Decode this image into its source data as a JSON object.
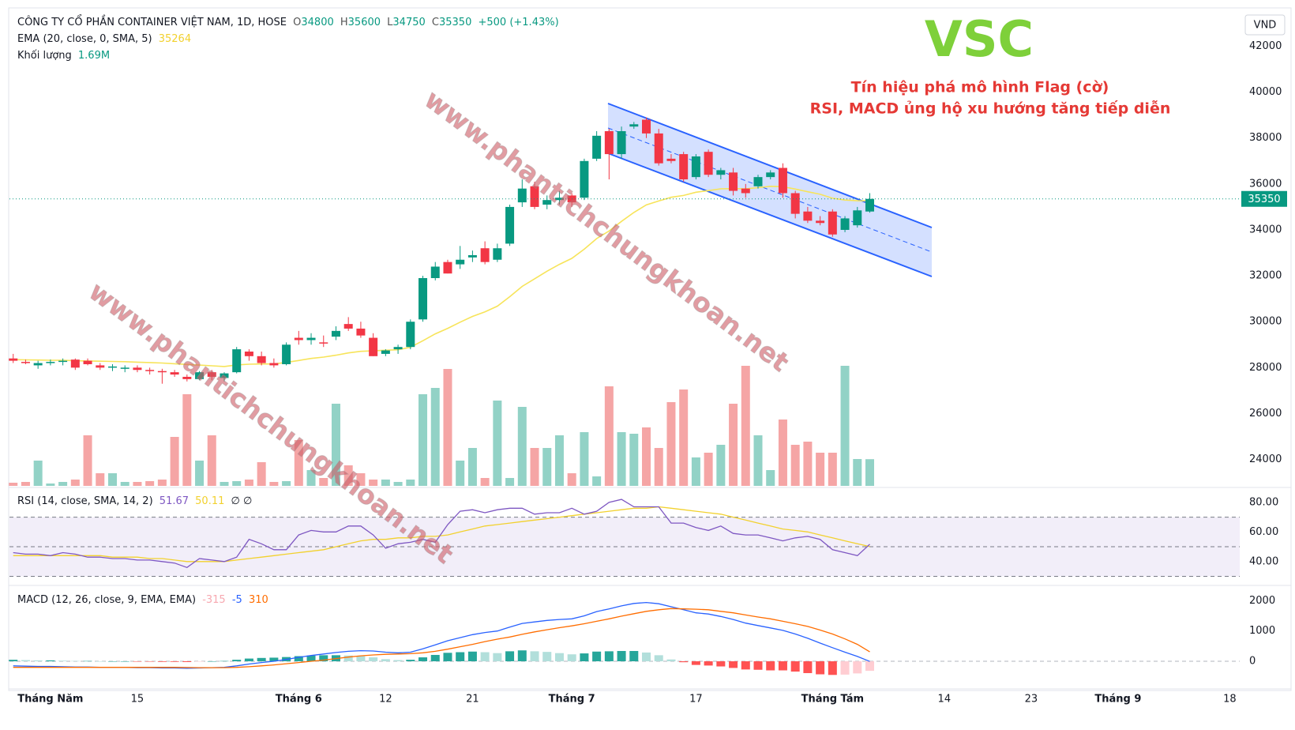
{
  "chart_data": {
    "type": "candlestick",
    "title": "CÔNG TY CỔ PHẦN CONTAINER VIỆT NAM, 1D, HOSE",
    "ohlc_letters": [
      "O",
      "H",
      "L",
      "C"
    ],
    "change_label": "+500 (+1.43%)",
    "currency": "VND",
    "up_color": "#089981",
    "down_color": "#f23645",
    "volume_up_color": "#92d2c6",
    "volume_down_color": "#f5a5a5",
    "open": [
      28400,
      28250,
      28100,
      28200,
      28250,
      28350,
      28300,
      28100,
      28000,
      27950,
      28000,
      27900,
      27850,
      27800,
      27600,
      27500,
      27800,
      27550,
      27800,
      28700,
      28500,
      28200,
      28150,
      29300,
      29200,
      29100,
      29350,
      29900,
      29700,
      29300,
      28600,
      28800,
      28900,
      30100,
      31900,
      32600,
      32500,
      32800,
      33200,
      32700,
      33400,
      35200,
      35900,
      35100,
      35300,
      35500,
      35400,
      37100,
      38300,
      37300,
      38500,
      38800,
      38200,
      37100,
      37300,
      36300,
      37400,
      36400,
      36500,
      35800,
      35900,
      36300,
      36700,
      35600,
      34800,
      34400,
      34800,
      34000,
      34200,
      34800
    ],
    "high": [
      28600,
      28350,
      28300,
      28350,
      28400,
      28400,
      28400,
      28200,
      28150,
      28100,
      28100,
      28000,
      27950,
      27900,
      27700,
      27850,
      27900,
      27800,
      28900,
      28800,
      28700,
      28400,
      29100,
      29600,
      29500,
      29400,
      29800,
      30200,
      30000,
      29500,
      28800,
      29000,
      30100,
      32000,
      32600,
      32700,
      33300,
      33100,
      33500,
      33400,
      35100,
      36200,
      36100,
      35500,
      35700,
      35600,
      37100,
      38300,
      38400,
      38500,
      38700,
      38900,
      38400,
      37300,
      37400,
      37300,
      37500,
      36700,
      36700,
      36000,
      36400,
      36600,
      36900,
      35700,
      35000,
      34600,
      34900,
      34600,
      35000,
      35600
    ],
    "low": [
      28200,
      28150,
      27950,
      28100,
      28100,
      27900,
      28100,
      27900,
      27850,
      27800,
      27800,
      27700,
      27300,
      27600,
      27400,
      27450,
      27450,
      27400,
      27750,
      28300,
      28100,
      28000,
      28100,
      29000,
      29000,
      28900,
      29200,
      29600,
      29300,
      28500,
      28500,
      28600,
      28800,
      30000,
      31800,
      32100,
      32300,
      32600,
      32500,
      32600,
      33300,
      35000,
      34900,
      34900,
      35100,
      35000,
      35300,
      37000,
      36200,
      37100,
      38400,
      38000,
      36800,
      36900,
      36100,
      36200,
      36300,
      36200,
      35500,
      35400,
      35800,
      36200,
      35400,
      34500,
      34300,
      34200,
      33700,
      33900,
      34100,
      34750
    ],
    "close": [
      28300,
      28200,
      28200,
      28250,
      28300,
      28000,
      28150,
      28000,
      28050,
      28000,
      27900,
      27850,
      27800,
      27700,
      27500,
      27800,
      27600,
      27750,
      28800,
      28500,
      28200,
      28100,
      29000,
      29200,
      29300,
      29050,
      29600,
      29700,
      29400,
      28500,
      28750,
      28900,
      30000,
      31900,
      32400,
      32100,
      32700,
      32900,
      32600,
      33200,
      35000,
      35800,
      35000,
      35300,
      35400,
      35200,
      37000,
      38100,
      37300,
      38300,
      38600,
      38200,
      36900,
      37000,
      36200,
      37200,
      36400,
      36600,
      35700,
      35600,
      36300,
      36500,
      35600,
      34700,
      34400,
      34300,
      33800,
      34500,
      34850,
      35350
    ],
    "ema_label": "EMA (20, close, 0, SMA, 5)",
    "ema_color": "#f7e45a",
    "ema": [
      28350,
      28340,
      28330,
      28320,
      28320,
      28300,
      28290,
      28280,
      28270,
      28260,
      28240,
      28220,
      28200,
      28170,
      28140,
      28110,
      28080,
      28050,
      28120,
      28150,
      28160,
      28160,
      28230,
      28310,
      28400,
      28460,
      28540,
      28640,
      28710,
      28730,
      28760,
      28780,
      28890,
      29170,
      29470,
      29710,
      29980,
      30230,
      30430,
      30680,
      31090,
      31540,
      31870,
      32200,
      32500,
      32760,
      33160,
      33620,
      33950,
      34370,
      34760,
      35090,
      35260,
      35420,
      35500,
      35640,
      35710,
      35790,
      35800,
      35790,
      35840,
      35900,
      35880,
      35780,
      35660,
      35550,
      35380,
      35300,
      35270,
      35264
    ],
    "volume_name": "Khối lượng",
    "volume_last_label": "1.69M",
    "volume": [
      0.2,
      0.25,
      1.6,
      0.15,
      0.25,
      0.4,
      3.2,
      0.8,
      0.8,
      0.25,
      0.25,
      0.3,
      0.4,
      3.1,
      5.8,
      1.6,
      3.2,
      0.25,
      0.3,
      0.4,
      1.5,
      0.25,
      0.3,
      2.9,
      1.0,
      0.5,
      5.2,
      1.3,
      0.8,
      0.4,
      0.4,
      0.25,
      0.4,
      5.8,
      6.2,
      7.4,
      1.6,
      2.4,
      0.5,
      5.4,
      0.5,
      5.0,
      2.4,
      2.4,
      3.2,
      0.8,
      3.4,
      0.6,
      6.3,
      3.4,
      3.3,
      3.7,
      2.4,
      5.3,
      6.1,
      1.8,
      2.1,
      2.6,
      5.2,
      7.6,
      3.2,
      1.0,
      4.2,
      2.6,
      2.8,
      2.1,
      2.1,
      7.6,
      1.7,
      1.69
    ],
    "ylim": [
      22850,
      43600
    ],
    "yticks": [
      24000,
      26000,
      28000,
      30000,
      32000,
      34000,
      36000,
      38000,
      40000,
      42000
    ],
    "xlim": [
      -0.3,
      98.8
    ],
    "xticks": [
      {
        "value": 3,
        "label": "Tháng Năm"
      },
      {
        "value": 10,
        "label": "15"
      },
      {
        "value": 23,
        "label": "Tháng 6"
      },
      {
        "value": 30,
        "label": "12"
      },
      {
        "value": 37,
        "label": "21"
      },
      {
        "value": 45,
        "label": "Tháng 7"
      },
      {
        "value": 55,
        "label": "17"
      },
      {
        "value": 66,
        "label": "Tháng Tám"
      },
      {
        "value": 75,
        "label": "14"
      },
      {
        "value": 82,
        "label": "23"
      },
      {
        "value": 89,
        "label": "Tháng 9"
      },
      {
        "value": 98,
        "label": "18"
      }
    ],
    "annotation_symbol": "VSC",
    "annotation_lines": [
      "Tín hiệu phá mô hình Flag (cờ)",
      "RSI, MACD ủng hộ xu hướng tăng tiếp diễn"
    ],
    "watermark": "www.phantichchungkhoan.net",
    "rsi": {
      "label": "RSI (14, close, SMA, 14, 2)",
      "empty_symbols": "∅ ∅",
      "color": "#7e57c2",
      "sma_color": "#f2d12e",
      "values": [
        46,
        45,
        45,
        44,
        46,
        45,
        43,
        43,
        42,
        42,
        41,
        41,
        40,
        39,
        36,
        42,
        41,
        40,
        43,
        55,
        52,
        48,
        48,
        58,
        61,
        60,
        60,
        64,
        64,
        58,
        49,
        52,
        53,
        55,
        53,
        65,
        74,
        75,
        73,
        75,
        76,
        76,
        72,
        73,
        73,
        76,
        72,
        74,
        80,
        82,
        77,
        77,
        77,
        66,
        66,
        63,
        61,
        64,
        59,
        58,
        58,
        56,
        54,
        56,
        57,
        55,
        48,
        46,
        44,
        51.67
      ],
      "sma": [
        44,
        44,
        44,
        44,
        44,
        44,
        44,
        44,
        43,
        43,
        43,
        42,
        42,
        41,
        40,
        40,
        40,
        40,
        41,
        42,
        43,
        44,
        45,
        46,
        47,
        48,
        50,
        52,
        54,
        55,
        55,
        56,
        56,
        57,
        57,
        58,
        60,
        62,
        64,
        65,
        66,
        67,
        68,
        69,
        70,
        71,
        72,
        73,
        74,
        75,
        76,
        76,
        77,
        76,
        75,
        74,
        73,
        72,
        70,
        68,
        66,
        64,
        62,
        61,
        60,
        58,
        56,
        54,
        52,
        50.11
      ],
      "band_lower": 30,
      "band_middle": 50,
      "band_upper": 70,
      "ylim": [
        26,
        89
      ],
      "yticks": [
        {
          "value": 40,
          "label": "40.00"
        },
        {
          "value": 60,
          "label": "60.00"
        },
        {
          "value": 80,
          "label": "80.00"
        }
      ]
    },
    "macd": {
      "label": "MACD (12, 26, close, 9, EMA, EMA)",
      "macd_color": "#2962ff",
      "signal_color": "#ff6d00",
      "hist": [
        50,
        40,
        30,
        30,
        20,
        10,
        10,
        0,
        0,
        0,
        -10,
        -10,
        -20,
        -20,
        -25,
        -10,
        0,
        10,
        50,
        90,
        110,
        120,
        140,
        170,
        190,
        200,
        200,
        190,
        170,
        130,
        70,
        40,
        50,
        130,
        210,
        280,
        300,
        320,
        300,
        270,
        330,
        360,
        330,
        310,
        270,
        230,
        260,
        320,
        330,
        340,
        340,
        290,
        200,
        60,
        -30,
        -120,
        -140,
        -170,
        -220,
        -270,
        -280,
        -300,
        -300,
        -340,
        -390,
        -430,
        -450,
        -440,
        -400,
        -315
      ],
      "macd": [
        -150,
        -160,
        -170,
        -170,
        -180,
        -190,
        -190,
        -200,
        -200,
        -200,
        -210,
        -210,
        -220,
        -220,
        -230,
        -220,
        -210,
        -200,
        -150,
        -90,
        -40,
        0,
        60,
        130,
        190,
        240,
        290,
        330,
        350,
        340,
        300,
        280,
        300,
        410,
        540,
        680,
        780,
        880,
        950,
        1000,
        1130,
        1250,
        1300,
        1350,
        1380,
        1400,
        1500,
        1640,
        1730,
        1830,
        1910,
        1940,
        1900,
        1800,
        1700,
        1600,
        1560,
        1480,
        1380,
        1260,
        1180,
        1100,
        1020,
        900,
        760,
        600,
        450,
        300,
        160,
        -5
      ],
      "signal": [
        -200,
        -200,
        -200,
        -200,
        -200,
        -200,
        -200,
        -200,
        -200,
        -200,
        -200,
        -200,
        -200,
        -200,
        -205,
        -210,
        -210,
        -210,
        -200,
        -180,
        -150,
        -120,
        -80,
        -40,
        0,
        40,
        90,
        140,
        180,
        210,
        230,
        240,
        250,
        280,
        330,
        400,
        480,
        560,
        650,
        730,
        800,
        890,
        970,
        1040,
        1110,
        1170,
        1240,
        1320,
        1400,
        1490,
        1570,
        1650,
        1700,
        1740,
        1730,
        1720,
        1700,
        1650,
        1600,
        1530,
        1460,
        1400,
        1320,
        1240,
        1150,
        1030,
        900,
        740,
        560,
        310
      ],
      "ylim": [
        -860,
        2400
      ],
      "yticks": [
        0,
        1000,
        2000
      ]
    }
  }
}
